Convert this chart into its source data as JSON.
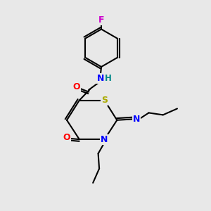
{
  "background_color": "#e8e8e8",
  "bond_color": "#000000",
  "atom_colors": {
    "F": "#cc00cc",
    "O": "#ff0000",
    "N": "#0000ff",
    "S": "#aaaa00",
    "H": "#008888",
    "C": "#000000"
  }
}
